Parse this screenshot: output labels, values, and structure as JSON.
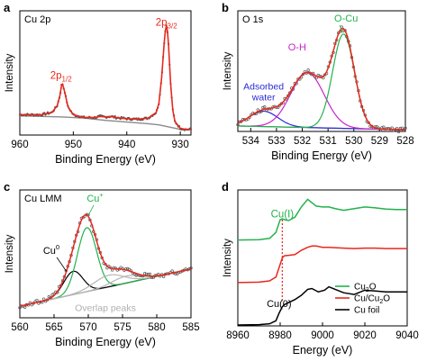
{
  "colors": {
    "red": "#e8281c",
    "gray": "#8a8a8a",
    "blue": "#2a2ad8",
    "magenta": "#cc22cc",
    "green": "#22b24c",
    "black": "#000000",
    "dots": "#555555"
  },
  "chart_data": [
    {
      "panel": "a",
      "type": "line",
      "title": "Cu 2p",
      "xlabel": "Binding Energy (eV)",
      "ylabel": "Intensity",
      "xlim": [
        960,
        928
      ],
      "ylim": [
        0,
        1.1
      ],
      "x_reversed": true,
      "xticks": [
        960,
        950,
        940,
        930
      ],
      "xtick_labels": [
        "960",
        "950",
        "940",
        "930"
      ],
      "annotations": [
        {
          "text": "2p1/2",
          "main": "2p",
          "sub": "1/2",
          "x": 952.3,
          "y": 0.5
        },
        {
          "text": "2p3/2",
          "main": "2p",
          "sub": "3/2",
          "x": 932.6,
          "y": 0.97
        }
      ],
      "series": [
        {
          "role": "fit",
          "x": [
            960,
            956,
            954,
            953,
            952.5,
            952.2,
            952.0,
            951.6,
            951,
            950,
            948,
            946,
            945,
            944,
            943,
            942,
            940,
            938,
            936,
            934.5,
            934,
            933.5,
            933,
            932.8,
            932.6,
            932.4,
            932.2,
            931.8,
            931.4,
            931,
            930,
            929,
            928
          ],
          "values": [
            0.18,
            0.18,
            0.2,
            0.26,
            0.35,
            0.44,
            0.45,
            0.38,
            0.25,
            0.18,
            0.155,
            0.155,
            0.165,
            0.16,
            0.165,
            0.155,
            0.145,
            0.14,
            0.15,
            0.2,
            0.28,
            0.5,
            0.82,
            0.92,
            0.97,
            0.92,
            0.8,
            0.45,
            0.22,
            0.12,
            0.06,
            0.05,
            0.05
          ]
        },
        {
          "role": "background",
          "x": [
            960,
            956,
            952,
            948,
            944,
            940,
            936,
            934,
            932,
            930,
            928
          ],
          "values": [
            0.17,
            0.165,
            0.16,
            0.15,
            0.13,
            0.115,
            0.1,
            0.09,
            0.07,
            0.05,
            0.045
          ]
        }
      ]
    },
    {
      "panel": "b",
      "type": "line",
      "title": "O 1s",
      "xlabel": "Binding Energy (eV)",
      "ylabel": "Intensity",
      "xlim": [
        534.5,
        528
      ],
      "ylim": [
        0,
        1.1
      ],
      "x_reversed": true,
      "xticks": [
        534,
        533,
        532,
        531,
        530,
        529,
        528
      ],
      "xtick_labels": [
        "534",
        "533",
        "532",
        "531",
        "530",
        "529",
        "528"
      ],
      "annotations": [
        {
          "text": "O-Cu",
          "x": 530.3,
          "y": 1.0
        },
        {
          "text": "O-H",
          "x": 532.2,
          "y": 0.74
        },
        {
          "text": "Adsorbed water",
          "line1": "Adsorbed",
          "line2": "water",
          "x": 533.5,
          "y": 0.38
        }
      ],
      "series": [
        {
          "role": "component-water",
          "name": "Adsorbed water",
          "peak_x": 533.5,
          "height": 0.14,
          "sigma": 0.55
        },
        {
          "role": "component-OH",
          "name": "O-H",
          "peak_x": 531.8,
          "height": 0.5,
          "sigma": 0.65
        },
        {
          "role": "component-OCu",
          "name": "O-Cu",
          "peak_x": 530.4,
          "height": 0.86,
          "sigma": 0.42
        },
        {
          "role": "background",
          "start": 0.05,
          "end": 0.015
        },
        {
          "role": "data-dots"
        },
        {
          "role": "envelope"
        }
      ]
    },
    {
      "panel": "c",
      "type": "line",
      "title": "Cu LMM",
      "xlabel": "Binding Energy (eV)",
      "ylabel": "Intensity",
      "xlim": [
        560,
        585
      ],
      "ylim": [
        0,
        1.1
      ],
      "x_reversed": false,
      "xticks": [
        560,
        565,
        570,
        575,
        580,
        585
      ],
      "xtick_labels": [
        "560",
        "565",
        "570",
        "575",
        "580",
        "585"
      ],
      "annotations": [
        {
          "text": "Cu+",
          "main": "Cu",
          "sup": "+",
          "x": 571,
          "y": 1.0
        },
        {
          "text": "Cu0",
          "main": "Cu",
          "sup": "0",
          "x": 564.6,
          "y": 0.55
        },
        {
          "text": "Overlap peaks",
          "x": 572.5,
          "y": 0.06
        }
      ],
      "series": [
        {
          "role": "component-Cu0",
          "name": "Cu0",
          "peak_x": 567.8,
          "height": 0.2,
          "sigma": 1.4
        },
        {
          "role": "component-Cu+",
          "name": "Cu+",
          "peak_x": 569.8,
          "height": 0.55,
          "sigma": 1.4
        },
        {
          "role": "overlap-peak",
          "peak_x": 573.0,
          "height": 0.1,
          "sigma": 2.2
        },
        {
          "role": "overlap-peak",
          "peak_x": 575.5,
          "height": 0.06,
          "sigma": 2.0
        },
        {
          "role": "background",
          "start": 0.1,
          "end": 0.42
        },
        {
          "role": "data-dots"
        },
        {
          "role": "envelope"
        }
      ]
    },
    {
      "panel": "d",
      "type": "line",
      "xlabel": "Energy (eV)",
      "ylabel": "Intensity",
      "xlim": [
        8960,
        9040
      ],
      "ylim": [
        0,
        3.2
      ],
      "x_reversed": false,
      "xticks": [
        8960,
        8980,
        9000,
        9020,
        9040
      ],
      "xtick_labels": [
        "8960",
        "8980",
        "9000",
        "9020",
        "9040"
      ],
      "annotations": [
        {
          "text": "Cu(I)",
          "x": 8981,
          "y": 2.55
        },
        {
          "text": "Cu(0)",
          "x": 8979.5,
          "y": 0.45
        }
      ],
      "legend": {
        "position": "bottom-right",
        "items": [
          {
            "text": "Cu2O",
            "main": "Cu",
            "sub": "2",
            "tail": "O",
            "color": "#22b24c"
          },
          {
            "text": "Cu/Cu2O",
            "main": "Cu/Cu",
            "sub": "2",
            "tail": "O",
            "color": "#e8281c"
          },
          {
            "text": "Cu foil",
            "main": "Cu foil",
            "sub": "",
            "tail": "",
            "color": "#000000"
          }
        ]
      },
      "series": [
        {
          "name": "Cu foil",
          "color": "#000000",
          "offset": 0.0,
          "x": [
            8960,
            8970,
            8975,
            8978,
            8979.5,
            8981,
            8982,
            8984,
            8987,
            8990,
            8993,
            8995,
            8998,
            9001,
            9003,
            9006,
            9010,
            9015,
            9020,
            9025,
            9030,
            9035,
            9040
          ],
          "values": [
            0.02,
            0.03,
            0.05,
            0.12,
            0.3,
            0.45,
            0.5,
            0.55,
            0.62,
            0.72,
            0.86,
            0.88,
            0.8,
            0.84,
            0.92,
            0.86,
            0.78,
            0.74,
            0.84,
            0.82,
            0.8,
            0.8,
            0.8
          ]
        },
        {
          "name": "Cu/Cu2O",
          "color": "#e8281c",
          "offset": 1.0,
          "x": [
            8960,
            8970,
            8975,
            8978,
            8980,
            8981,
            8982,
            8984,
            8987,
            8990,
            8993,
            8995,
            8997,
            9000,
            9003,
            9006,
            9010,
            9015,
            9020,
            9025,
            9030,
            9035,
            9040
          ],
          "values": [
            0.02,
            0.03,
            0.06,
            0.15,
            0.45,
            0.6,
            0.65,
            0.66,
            0.68,
            0.78,
            0.85,
            0.88,
            0.88,
            0.85,
            0.85,
            0.84,
            0.83,
            0.82,
            0.83,
            0.83,
            0.82,
            0.82,
            0.82
          ]
        },
        {
          "name": "Cu2O",
          "color": "#22b24c",
          "offset": 2.0,
          "x": [
            8960,
            8970,
            8975,
            8978,
            8980,
            8981,
            8982,
            8984,
            8987,
            8990,
            8993,
            8995,
            8997,
            9000,
            9003,
            9006,
            9010,
            9015,
            9020,
            9025,
            9030,
            9035,
            9040
          ],
          "values": [
            0.02,
            0.03,
            0.06,
            0.2,
            0.5,
            0.52,
            0.5,
            0.48,
            0.56,
            0.8,
            0.98,
            0.9,
            0.82,
            0.8,
            0.8,
            0.76,
            0.72,
            0.76,
            0.8,
            0.78,
            0.75,
            0.74,
            0.74
          ]
        }
      ]
    }
  ]
}
